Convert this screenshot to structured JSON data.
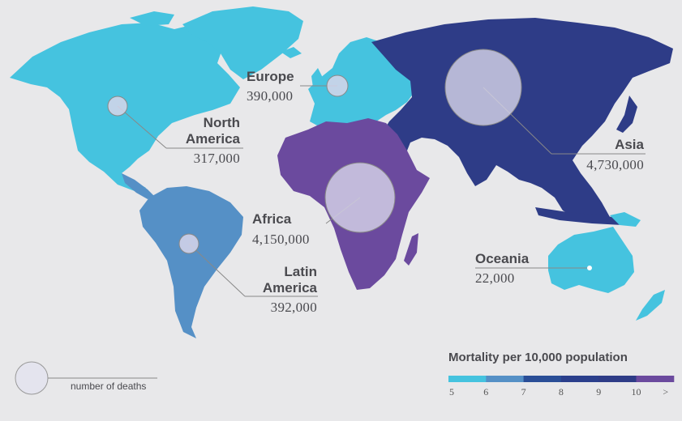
{
  "colors": {
    "background": "#e8e8ea",
    "bin_5": "#45c3df",
    "bin_6": "#5590c6",
    "bin_7": "#2a4e97",
    "bin_9": "#2e3c87",
    "bin_10": "#6b4a9e",
    "bubble_fill": "#d8d6ea",
    "leader": "#777777"
  },
  "regions": [
    {
      "id": "north-america",
      "name_lines": [
        "North",
        "America"
      ],
      "deaths": "317,000",
      "mortality_bin": 5
    },
    {
      "id": "europe",
      "name_lines": [
        "Europe"
      ],
      "deaths": "390,000",
      "mortality_bin": 5
    },
    {
      "id": "asia",
      "name_lines": [
        "Asia"
      ],
      "deaths": "4,730,000",
      "mortality_bin": 9
    },
    {
      "id": "africa",
      "name_lines": [
        "Africa"
      ],
      "deaths": "4,150,000",
      "mortality_bin": 10
    },
    {
      "id": "latin-america",
      "name_lines": [
        "Latin",
        "America"
      ],
      "deaths": "392,000",
      "mortality_bin": 6
    },
    {
      "id": "oceania",
      "name_lines": [
        "Oceania"
      ],
      "deaths": "22,000",
      "mortality_bin": 5
    }
  ],
  "legend": {
    "title": "Mortality per 10,000 population",
    "ticks": [
      "5",
      "6",
      "7",
      "8",
      "9",
      "10",
      ">"
    ],
    "colors": [
      "#45c3df",
      "#5590c6",
      "#2a4e97",
      "#2b3f8c",
      "#2e3c87",
      "#6b4a9e"
    ]
  },
  "size_legend": {
    "label": "number of deaths"
  }
}
